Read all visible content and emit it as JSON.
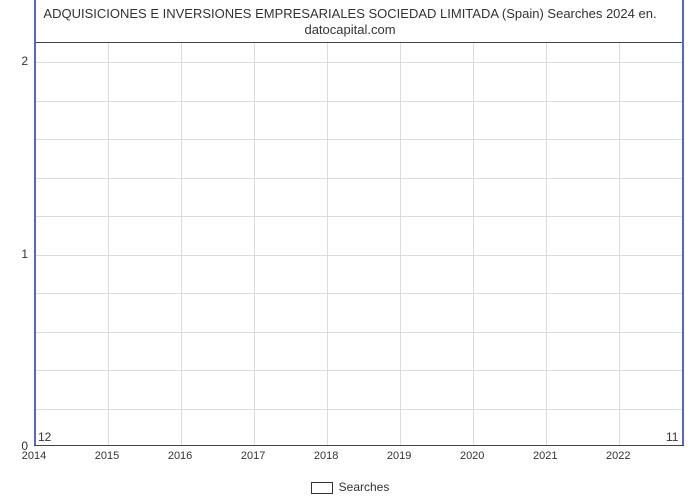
{
  "chart": {
    "type": "line",
    "title_line1": "ADQUISICIONES E INVERSIONES EMPRESARIALES SOCIEDAD LIMITADA (Spain) Searches 2024 en.",
    "title_line2": "datocapital.com",
    "title_fontsize": 13,
    "title_color": "#333333",
    "background_color": "#ffffff",
    "plot_border_color": "#444444",
    "grid_color": "#dcdcdc",
    "axis_label_color": "#333333",
    "xticks": [
      "2014",
      "2015",
      "2016",
      "2017",
      "2018",
      "2019",
      "2020",
      "2021",
      "2022"
    ],
    "yticks": [
      0,
      1,
      2
    ],
    "ylim": [
      0,
      2.1
    ],
    "xlim": [
      2014,
      2022.9
    ],
    "minor_grid_per_major_y": 5,
    "line_color": "#5566cc",
    "line_width": 2,
    "data_x": [
      2014,
      2022.9
    ],
    "data_y": [
      12,
      11
    ],
    "point_label_first": "12",
    "point_label_last": "11",
    "legend_label": "Searches",
    "legend_box_fill": "#ffffff",
    "legend_box_border": "#333333",
    "xtick_fontsize": 11,
    "ytick_fontsize": 12,
    "data_label_fontsize": 12
  }
}
